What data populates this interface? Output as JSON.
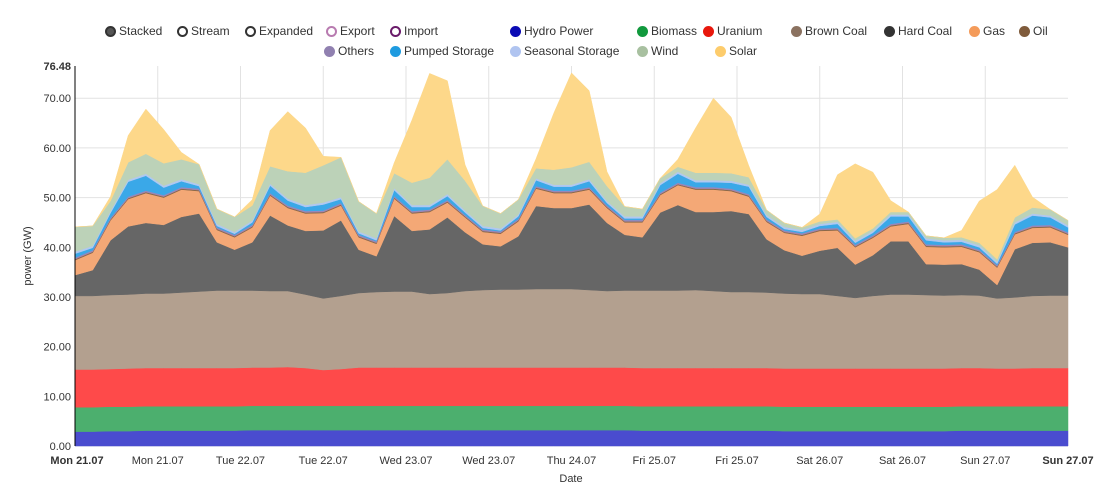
{
  "legend": {
    "modes": [
      {
        "label": "Stacked",
        "selected": true,
        "color": "#555555"
      },
      {
        "label": "Stream",
        "selected": false,
        "color": "#333333"
      },
      {
        "label": "Expanded",
        "selected": false,
        "color": "#333333"
      }
    ],
    "toggles": [
      {
        "label": "Export",
        "color": "#b87bb0",
        "enabled": false
      },
      {
        "label": "Import",
        "color": "#6a1b6a",
        "enabled": false
      }
    ]
  },
  "chart_data": {
    "type": "area",
    "stacked": true,
    "xlabel": "Date",
    "ylabel": "power (GW)",
    "ylim": [
      0,
      76.48
    ],
    "y_ticks": [
      "0.00",
      "10.00",
      "20.00",
      "30.00",
      "40.00",
      "50.00",
      "60.00",
      "70.00"
    ],
    "y_max_label": "76.48",
    "x_tick_labels": [
      "Mon 21.07",
      "Mon 21.07",
      "Tue 22.07",
      "Tue 22.07",
      "Wed 23.07",
      "Wed 23.07",
      "Thu 24.07",
      "Fri 25.07",
      "Fri 25.07",
      "Sat 26.07",
      "Sat 26.07",
      "Sun 27.07",
      "Sun 27.07"
    ],
    "grid": true,
    "legend_position": "top",
    "x": [
      "21.07 00:00",
      "21.07 03:00",
      "21.07 06:00",
      "21.07 09:00",
      "21.07 12:00",
      "21.07 15:00",
      "21.07 18:00",
      "21.07 21:00",
      "22.07 00:00",
      "22.07 03:00",
      "22.07 06:00",
      "22.07 09:00",
      "22.07 12:00",
      "22.07 15:00",
      "22.07 18:00",
      "22.07 21:00",
      "23.07 00:00",
      "23.07 03:00",
      "23.07 06:00",
      "23.07 09:00",
      "23.07 12:00",
      "23.07 15:00",
      "23.07 18:00",
      "23.07 21:00",
      "24.07 00:00",
      "24.07 03:00",
      "24.07 06:00",
      "24.07 09:00",
      "24.07 12:00",
      "24.07 15:00",
      "24.07 18:00",
      "24.07 21:00",
      "25.07 00:00",
      "25.07 03:00",
      "25.07 06:00",
      "25.07 09:00",
      "25.07 12:00",
      "25.07 15:00",
      "25.07 18:00",
      "25.07 21:00",
      "26.07 00:00",
      "26.07 03:00",
      "26.07 06:00",
      "26.07 09:00",
      "26.07 12:00",
      "26.07 15:00",
      "26.07 18:00",
      "26.07 21:00",
      "27.07 00:00",
      "27.07 03:00",
      "27.07 06:00",
      "27.07 09:00",
      "27.07 12:00",
      "27.07 15:00",
      "27.07 18:00",
      "27.07 21:00",
      "27.07 24:00"
    ],
    "series": [
      {
        "name": "Hydro Power",
        "color": "#0a0ab4",
        "fill": "#4a4ccf",
        "values": [
          2.9,
          2.9,
          3.0,
          3.0,
          3.1,
          3.1,
          3.1,
          3.1,
          3.1,
          3.1,
          3.2,
          3.2,
          3.2,
          3.2,
          3.2,
          3.2,
          3.2,
          3.2,
          3.2,
          3.2,
          3.2,
          3.2,
          3.2,
          3.2,
          3.2,
          3.2,
          3.2,
          3.2,
          3.2,
          3.2,
          3.2,
          3.2,
          3.1,
          3.1,
          3.1,
          3.1,
          3.1,
          3.1,
          3.1,
          3.1,
          3.0,
          3.0,
          3.0,
          3.0,
          3.0,
          3.0,
          3.0,
          3.0,
          3.0,
          3.0,
          3.1,
          3.1,
          3.1,
          3.1,
          3.1,
          3.1,
          3.1
        ]
      },
      {
        "name": "Biomass",
        "color": "#11993d",
        "fill": "#4caf6e",
        "values": [
          4.9,
          4.9,
          4.9,
          4.9,
          4.9,
          4.9,
          4.9,
          4.9,
          4.9,
          4.9,
          4.9,
          4.9,
          4.9,
          4.9,
          4.9,
          4.9,
          4.9,
          4.9,
          4.9,
          4.9,
          4.9,
          4.9,
          4.9,
          4.9,
          4.9,
          4.9,
          4.9,
          4.9,
          4.9,
          4.9,
          4.9,
          4.9,
          4.9,
          4.9,
          4.9,
          4.9,
          4.9,
          4.9,
          4.9,
          4.9,
          4.9,
          4.9,
          4.9,
          4.9,
          4.9,
          4.9,
          4.9,
          4.9,
          4.9,
          4.9,
          4.9,
          4.9,
          4.9,
          4.9,
          4.9,
          4.9,
          4.9
        ]
      },
      {
        "name": "Uranium",
        "color": "#e8170c",
        "fill": "#fe4a4a",
        "values": [
          7.6,
          7.6,
          7.6,
          7.7,
          7.7,
          7.7,
          7.7,
          7.7,
          7.7,
          7.7,
          7.7,
          7.7,
          7.8,
          7.6,
          7.2,
          7.4,
          7.7,
          7.7,
          7.7,
          7.7,
          7.7,
          7.7,
          7.7,
          7.7,
          7.7,
          7.7,
          7.7,
          7.7,
          7.7,
          7.7,
          7.7,
          7.7,
          7.7,
          7.7,
          7.7,
          7.7,
          7.7,
          7.7,
          7.7,
          7.7,
          7.7,
          7.7,
          7.7,
          7.7,
          7.7,
          7.7,
          7.7,
          7.7,
          7.7,
          7.7,
          7.7,
          7.7,
          7.6,
          7.6,
          7.7,
          7.7,
          7.7
        ]
      },
      {
        "name": "Brown Coal",
        "color": "#8b7260",
        "fill": "#b3a08f",
        "values": [
          14.8,
          14.8,
          14.9,
          14.9,
          15.0,
          15.0,
          15.2,
          15.4,
          15.6,
          15.6,
          15.5,
          15.4,
          15.3,
          14.8,
          14.4,
          14.7,
          15.0,
          15.2,
          15.3,
          15.3,
          14.8,
          15.0,
          15.4,
          15.6,
          15.7,
          15.7,
          15.8,
          15.8,
          15.8,
          15.6,
          15.4,
          15.5,
          15.6,
          15.6,
          15.6,
          15.7,
          15.5,
          15.3,
          15.3,
          15.2,
          15.1,
          15.0,
          15.0,
          14.6,
          14.2,
          14.6,
          14.9,
          14.9,
          14.8,
          14.7,
          14.7,
          14.6,
          14.1,
          14.3,
          14.5,
          14.6,
          14.6
        ]
      },
      {
        "name": "Hard Coal",
        "color": "#333333",
        "fill": "#666666",
        "values": [
          4.2,
          5.2,
          11.0,
          13.7,
          14.2,
          13.8,
          15.2,
          15.7,
          9.7,
          8.2,
          9.7,
          15.2,
          13.2,
          12.8,
          13.7,
          15.2,
          8.7,
          7.2,
          15.2,
          12.2,
          13.0,
          15.2,
          11.8,
          9.2,
          8.7,
          10.7,
          16.7,
          16.3,
          16.3,
          17.2,
          13.7,
          11.2,
          10.7,
          15.7,
          17.2,
          15.7,
          15.9,
          16.3,
          15.7,
          10.7,
          8.7,
          7.7,
          8.7,
          9.7,
          6.7,
          8.2,
          10.7,
          10.7,
          6.2,
          6.2,
          6.2,
          5.2,
          2.7,
          9.7,
          10.7,
          10.7,
          9.7
        ]
      },
      {
        "name": "Gas",
        "color": "#f49b5a",
        "fill": "#f4a876",
        "values": [
          3.0,
          3.5,
          4.0,
          5.5,
          6.0,
          5.5,
          5.5,
          4.5,
          2.5,
          2.5,
          3.0,
          4.0,
          3.5,
          3.5,
          3.5,
          3.0,
          2.5,
          2.5,
          3.5,
          3.5,
          3.5,
          3.0,
          3.0,
          2.5,
          2.5,
          3.0,
          3.5,
          3.0,
          3.0,
          3.0,
          3.0,
          2.5,
          3.0,
          3.5,
          4.0,
          4.5,
          4.5,
          4.0,
          3.5,
          3.5,
          3.5,
          4.0,
          4.0,
          3.5,
          3.5,
          3.5,
          3.0,
          3.5,
          3.5,
          3.5,
          3.5,
          3.5,
          3.5,
          3.0,
          3.0,
          3.0,
          2.5
        ]
      },
      {
        "name": "Oil",
        "color": "#7f5b3b",
        "fill": "#8b6848",
        "values": [
          0.2,
          0.2,
          0.2,
          0.2,
          0.2,
          0.2,
          0.2,
          0.2,
          0.2,
          0.2,
          0.2,
          0.2,
          0.2,
          0.2,
          0.2,
          0.2,
          0.2,
          0.2,
          0.2,
          0.2,
          0.2,
          0.2,
          0.2,
          0.2,
          0.2,
          0.2,
          0.2,
          0.2,
          0.2,
          0.2,
          0.2,
          0.2,
          0.2,
          0.2,
          0.2,
          0.2,
          0.2,
          0.2,
          0.2,
          0.2,
          0.2,
          0.2,
          0.2,
          0.2,
          0.2,
          0.2,
          0.2,
          0.2,
          0.2,
          0.2,
          0.2,
          0.2,
          0.2,
          0.2,
          0.2,
          0.2,
          0.2
        ]
      },
      {
        "name": "Others",
        "color": "#9080b0",
        "fill": "#9a86b8",
        "values": [
          0.3,
          0.3,
          0.3,
          0.3,
          0.3,
          0.3,
          0.3,
          0.3,
          0.3,
          0.3,
          0.3,
          0.3,
          0.3,
          0.3,
          0.3,
          0.3,
          0.3,
          0.3,
          0.3,
          0.3,
          0.3,
          0.3,
          0.3,
          0.3,
          0.3,
          0.3,
          0.3,
          0.3,
          0.3,
          0.3,
          0.3,
          0.3,
          0.3,
          0.3,
          0.3,
          0.3,
          0.3,
          0.3,
          0.3,
          0.3,
          0.3,
          0.3,
          0.3,
          0.3,
          0.3,
          0.3,
          0.3,
          0.3,
          0.3,
          0.3,
          0.3,
          0.3,
          0.3,
          0.3,
          0.3,
          0.3,
          0.3
        ]
      },
      {
        "name": "Pumped Storage",
        "color": "#1e9be0",
        "fill": "#3aa8e8",
        "values": [
          0.8,
          0.5,
          1.0,
          3.0,
          3.0,
          1.5,
          1.2,
          0.5,
          0.3,
          0.2,
          0.5,
          1.5,
          1.0,
          0.8,
          1.2,
          0.8,
          0.3,
          0.2,
          1.2,
          0.8,
          0.5,
          0.8,
          0.5,
          0.3,
          0.2,
          0.5,
          1.2,
          0.8,
          0.8,
          1.2,
          0.5,
          0.3,
          0.3,
          1.5,
          1.8,
          1.0,
          1.0,
          1.2,
          1.5,
          0.5,
          0.3,
          0.3,
          0.5,
          0.8,
          0.4,
          0.5,
          1.5,
          1.0,
          0.8,
          0.5,
          0.5,
          0.5,
          0.3,
          1.5,
          2.0,
          1.5,
          1.0
        ]
      },
      {
        "name": "Seasonal Storage",
        "color": "#b0c4f0",
        "fill": "#b0c8f0",
        "values": [
          0.4,
          0.4,
          0.4,
          0.4,
          0.4,
          0.4,
          0.4,
          0.4,
          0.4,
          0.4,
          0.4,
          0.4,
          0.4,
          0.4,
          0.4,
          0.4,
          0.4,
          0.4,
          0.4,
          0.4,
          0.4,
          0.4,
          0.4,
          0.4,
          0.4,
          0.4,
          0.4,
          0.4,
          0.4,
          0.4,
          0.4,
          0.4,
          0.4,
          0.4,
          0.4,
          0.4,
          0.4,
          0.4,
          0.4,
          0.4,
          0.4,
          0.4,
          0.4,
          0.4,
          0.4,
          0.4,
          0.4,
          0.4,
          0.4,
          0.4,
          0.4,
          0.4,
          0.4,
          0.4,
          0.4,
          0.4,
          0.4
        ]
      },
      {
        "name": "Wind",
        "color": "#a8c0a0",
        "fill": "#bcd2b8",
        "values": [
          5.0,
          4.0,
          2.0,
          3.5,
          4.0,
          4.5,
          4.0,
          4.0,
          3.0,
          3.0,
          3.0,
          3.5,
          5.5,
          6.5,
          7.5,
          8.0,
          6.0,
          5.0,
          3.0,
          4.5,
          5.5,
          7.0,
          6.0,
          4.0,
          3.0,
          3.0,
          2.0,
          3.0,
          3.5,
          3.5,
          3.0,
          2.0,
          1.5,
          1.0,
          1.0,
          1.5,
          1.5,
          1.5,
          1.5,
          1.0,
          0.8,
          0.5,
          0.5,
          0.5,
          0.5,
          0.5,
          0.5,
          0.5,
          0.5,
          0.5,
          0.5,
          0.5,
          0.5,
          1.0,
          1.2,
          1.2,
          1.0
        ]
      },
      {
        "name": "Solar",
        "color": "#fdcc6c",
        "fill": "#fdd88a",
        "values": [
          0,
          0,
          0.9,
          5.4,
          9.0,
          6.8,
          1.4,
          0,
          0,
          0,
          1.2,
          7.2,
          12.0,
          9.0,
          1.8,
          0,
          0,
          0,
          2.1,
          12.6,
          21.0,
          15.8,
          3.2,
          0,
          0,
          0,
          1.9,
          11.4,
          19.0,
          14.3,
          2.9,
          0,
          0,
          0,
          1.5,
          9.0,
          15.0,
          11.3,
          2.3,
          0,
          0,
          0,
          1.5,
          9.0,
          15.0,
          11.3,
          2.3,
          0,
          0,
          0,
          1.4,
          8.4,
          14.0,
          10.5,
          2.1,
          0,
          0
        ]
      }
    ]
  }
}
